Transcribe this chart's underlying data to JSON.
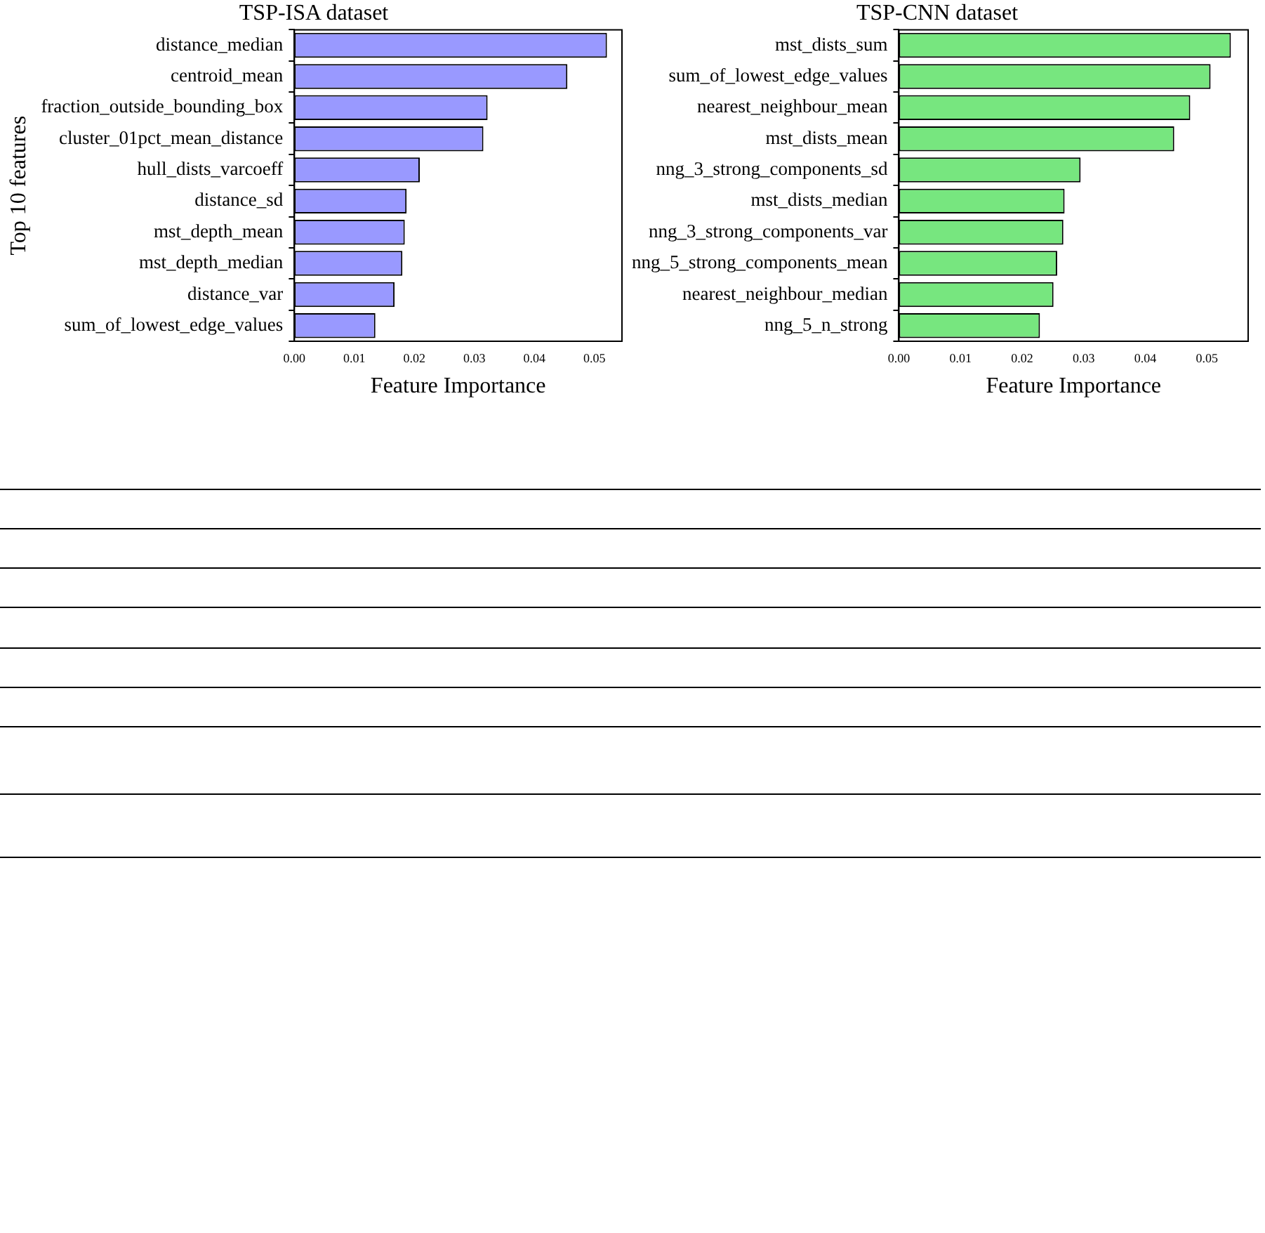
{
  "chart_data": [
    {
      "type": "bar",
      "orientation": "horizontal",
      "title": "TSP-ISA dataset",
      "xlabel": "Feature Importance",
      "ylabel": "Top 10 features",
      "categories": [
        "distance_median",
        "centroid_mean",
        "fraction_outside_bounding_box",
        "cluster_01pct_mean_distance",
        "hull_dists_varcoeff",
        "distance_sd",
        "mst_depth_mean",
        "mst_depth_median",
        "distance_var",
        "sum_of_lowest_edge_values"
      ],
      "values": [
        0.0521,
        0.0455,
        0.0322,
        0.0315,
        0.0209,
        0.0187,
        0.0184,
        0.018,
        0.0167,
        0.0135
      ],
      "color": "#9999ff",
      "xlim": [
        0,
        0.0546
      ],
      "xticks": [
        {
          "value": 0,
          "label": "0.00"
        },
        {
          "value": 0.01,
          "label": "0.01"
        },
        {
          "value": 0.02,
          "label": "0.02"
        },
        {
          "value": 0.03,
          "label": "0.03"
        },
        {
          "value": 0.04,
          "label": "0.04"
        },
        {
          "value": 0.05,
          "label": "0.05"
        }
      ],
      "grid": false,
      "legend": false
    },
    {
      "type": "bar",
      "orientation": "horizontal",
      "title": "TSP-CNN dataset",
      "xlabel": "Feature Importance",
      "categories": [
        "mst_dists_sum",
        "sum_of_lowest_edge_values",
        "nearest_neighbour_mean",
        "mst_dists_mean",
        "nng_3_strong_components_sd",
        "mst_dists_median",
        "nng_3_strong_components_var",
        "nng_5_strong_components_mean",
        "nearest_neighbour_median",
        "nng_5_n_strong"
      ],
      "values": [
        0.0539,
        0.0506,
        0.0473,
        0.0447,
        0.0295,
        0.0269,
        0.0267,
        0.0257,
        0.0251,
        0.0229
      ],
      "color": "#77e67f",
      "xlim": [
        0,
        0.0567
      ],
      "xticks": [
        {
          "value": 0,
          "label": "0.00"
        },
        {
          "value": 0.01,
          "label": "0.01"
        },
        {
          "value": 0.02,
          "label": "0.02"
        },
        {
          "value": 0.03,
          "label": "0.03"
        },
        {
          "value": 0.04,
          "label": "0.04"
        },
        {
          "value": 0.05,
          "label": "0.05"
        }
      ],
      "grid": false,
      "legend": false
    }
  ]
}
